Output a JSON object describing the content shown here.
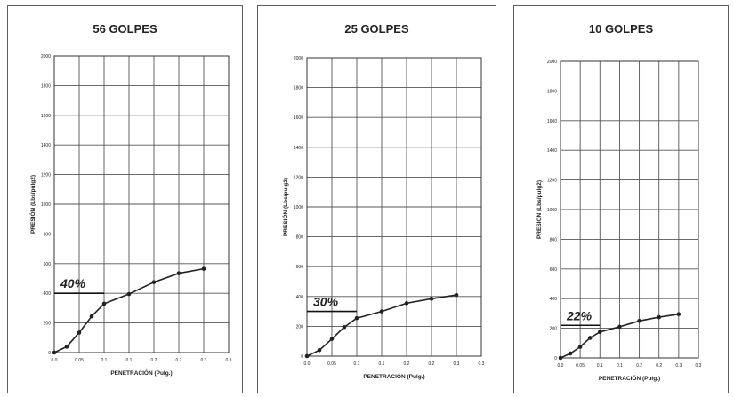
{
  "chart_data": [
    {
      "type": "line",
      "title": "56 GOLPES",
      "xlabel": "PENETRACIÓN (Pulg.)",
      "ylabel": "PRESIÓN (Lbs/pulg2)",
      "xlim": [
        0,
        0.35
      ],
      "ylim": [
        0,
        2000
      ],
      "x_ticks": [
        "0.0",
        "0.05",
        "0.1",
        "0.1",
        "0.2",
        "0.2",
        "0.3",
        "0.3"
      ],
      "y_ticks": [
        "0",
        "200",
        "400",
        "600",
        "800",
        "1000",
        "1200",
        "1400",
        "1600",
        "1800",
        "2000"
      ],
      "grid": true,
      "annotation": "40%",
      "series": [
        {
          "x": [
            0,
            0.025,
            0.05,
            0.075,
            0.1,
            0.15,
            0.2,
            0.25,
            0.3
          ],
          "values": [
            0,
            40,
            135,
            245,
            330,
            395,
            475,
            535,
            565
          ]
        }
      ],
      "reference_line": 400
    },
    {
      "type": "line",
      "title": "25 GOLPES",
      "xlabel": "PENETRACIÓN (Pulg.)",
      "ylabel": "PRESIÓN (Lbs/pulg2)",
      "xlim": [
        0,
        0.35
      ],
      "ylim": [
        0,
        2000
      ],
      "x_ticks": [
        "0.0",
        "0.05",
        "0.1",
        "0.1",
        "0.2",
        "0.2",
        "0.3",
        "0.3"
      ],
      "y_ticks": [
        "0",
        "200",
        "400",
        "600",
        "800",
        "1000",
        "1200",
        "1400",
        "1600",
        "1800",
        "2000"
      ],
      "grid": true,
      "annotation": "30%",
      "series": [
        {
          "x": [
            0,
            0.025,
            0.05,
            0.075,
            0.1,
            0.15,
            0.2,
            0.25,
            0.3
          ],
          "values": [
            0,
            40,
            115,
            195,
            255,
            300,
            355,
            385,
            410
          ]
        }
      ],
      "reference_line": 300
    },
    {
      "type": "line",
      "title": "10 GOLPES",
      "xlabel": "PENETRACIÓN (Pulg.)",
      "ylabel": "PRESIÓN (Lbs/pulg2)",
      "xlim": [
        0,
        0.35
      ],
      "ylim": [
        0,
        2000
      ],
      "x_ticks": [
        "0.0",
        "0.05",
        "0.1",
        "0.1",
        "0.2",
        "0.2",
        "0.3",
        "0.3"
      ],
      "y_ticks": [
        "0",
        "200",
        "400",
        "600",
        "800",
        "1000",
        "1200",
        "1400",
        "1600",
        "1800",
        "2000"
      ],
      "grid": true,
      "annotation": "22%",
      "series": [
        {
          "x": [
            0,
            0.025,
            0.05,
            0.075,
            0.1,
            0.15,
            0.2,
            0.25,
            0.3
          ],
          "values": [
            0,
            30,
            75,
            135,
            175,
            210,
            250,
            275,
            295
          ]
        }
      ],
      "reference_line": 220
    }
  ],
  "colors": {
    "line": "#222222",
    "grid": "#555555",
    "panel_border": "#5d5d5d",
    "watermark": "#c6dcec"
  }
}
